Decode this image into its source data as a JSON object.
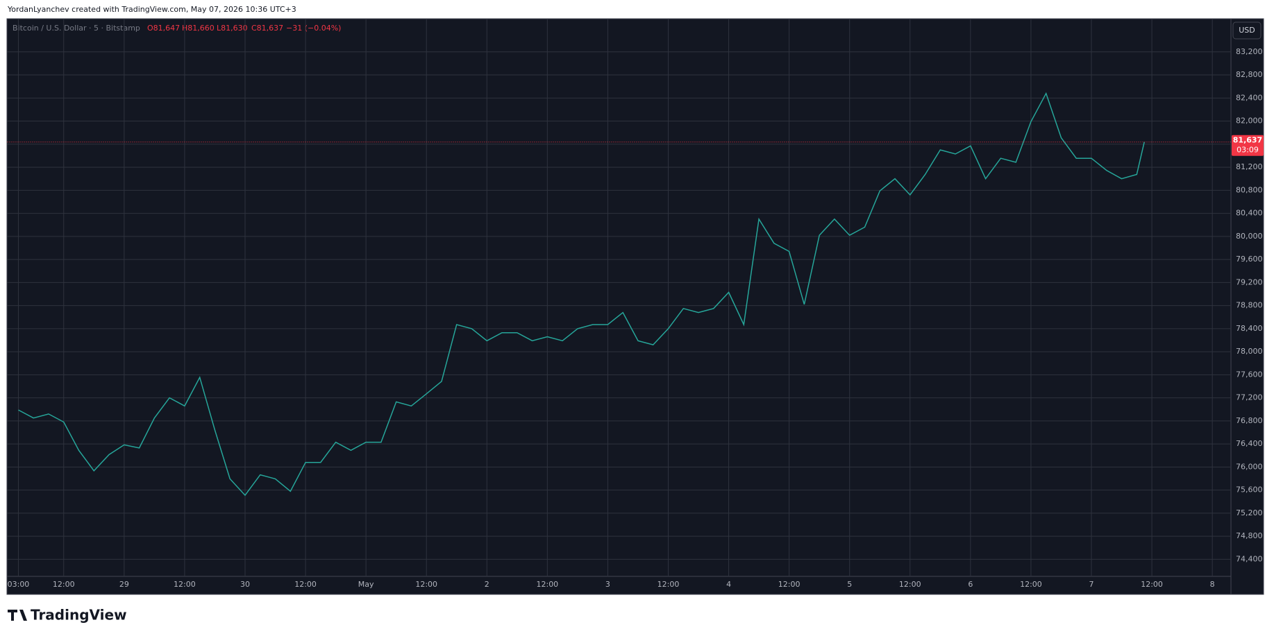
{
  "credit": "YordanLyanchev created with TradingView.com, May 07, 2026 10:36 UTC+3",
  "brand": "TradingView",
  "chart_data": {
    "type": "line",
    "legend": {
      "symbol": "Bitcoin / U.S. Dollar · 5 · Bitstamp",
      "open": "O81,647",
      "high": "H81,660",
      "low": "L81,630",
      "close": "C81,637",
      "change": "−31 (−0.04%)"
    },
    "currency": "USD",
    "countdown": "03:09",
    "last_price": {
      "value": 81637,
      "label": "81,637"
    },
    "color": "#26a69a",
    "x": [
      0,
      3,
      6,
      9,
      12,
      15,
      18,
      21,
      24,
      27,
      30,
      33,
      36,
      39,
      42,
      45,
      48,
      51,
      54,
      57,
      60,
      63,
      66,
      69,
      72,
      75,
      78,
      81,
      84,
      87,
      90,
      93,
      96,
      99,
      102,
      105,
      108,
      111,
      114,
      117,
      120,
      123,
      126,
      129,
      132,
      135,
      138,
      141,
      144,
      147,
      150,
      153,
      156,
      159,
      162,
      165,
      168,
      171,
      174,
      177,
      180,
      183,
      186,
      189,
      192,
      195,
      198,
      201,
      204,
      207,
      210,
      213,
      216,
      219,
      222,
      223.5
    ],
    "values": [
      76990,
      76850,
      76920,
      76780,
      76290,
      75935,
      76215,
      76385,
      76330,
      76850,
      77200,
      77060,
      77555,
      76640,
      75795,
      75510,
      75865,
      75795,
      75580,
      76080,
      76080,
      76430,
      76290,
      76430,
      76430,
      77130,
      77060,
      77270,
      77485,
      78470,
      78400,
      78190,
      78330,
      78330,
      78190,
      78260,
      78190,
      78400,
      78470,
      78470,
      78680,
      78190,
      78120,
      78400,
      78750,
      78680,
      78750,
      79030,
      78470,
      80300,
      79880,
      79740,
      78820,
      80020,
      80300,
      80020,
      80160,
      80790,
      81000,
      80720,
      81075,
      81500,
      81430,
      81570,
      81000,
      81355,
      81285,
      81990,
      82480,
      81710,
      81355,
      81355,
      81145,
      81000,
      81075,
      81637
    ],
    "xlim": [
      -2.2,
      240.7
    ],
    "xticks": [
      {
        "value": 0,
        "label": "03:00"
      },
      {
        "value": 9,
        "label": "12:00"
      },
      {
        "value": 21,
        "label": "29"
      },
      {
        "value": 33,
        "label": "12:00"
      },
      {
        "value": 45,
        "label": "30"
      },
      {
        "value": 57,
        "label": "12:00"
      },
      {
        "value": 69,
        "label": "May"
      },
      {
        "value": 81,
        "label": "12:00"
      },
      {
        "value": 93,
        "label": "2"
      },
      {
        "value": 105,
        "label": "12:00"
      },
      {
        "value": 117,
        "label": "3"
      },
      {
        "value": 129,
        "label": "12:00"
      },
      {
        "value": 141,
        "label": "4"
      },
      {
        "value": 153,
        "label": "12:00"
      },
      {
        "value": 165,
        "label": "5"
      },
      {
        "value": 177,
        "label": "12:00"
      },
      {
        "value": 189,
        "label": "6"
      },
      {
        "value": 201,
        "label": "12:00"
      },
      {
        "value": 213,
        "label": "7"
      },
      {
        "value": 225,
        "label": "12:00"
      },
      {
        "value": 237,
        "label": "8"
      }
    ],
    "ylim": [
      74104,
      83763
    ],
    "yticks": [
      {
        "value": 74400,
        "label": "74,400"
      },
      {
        "value": 74800,
        "label": "74,800"
      },
      {
        "value": 75200,
        "label": "75,200"
      },
      {
        "value": 75600,
        "label": "75,600"
      },
      {
        "value": 76000,
        "label": "76,000"
      },
      {
        "value": 76400,
        "label": "76,400"
      },
      {
        "value": 76800,
        "label": "76,800"
      },
      {
        "value": 77200,
        "label": "77,200"
      },
      {
        "value": 77600,
        "label": "77,600"
      },
      {
        "value": 78000,
        "label": "78,000"
      },
      {
        "value": 78400,
        "label": "78,400"
      },
      {
        "value": 78800,
        "label": "78,800"
      },
      {
        "value": 79200,
        "label": "79,200"
      },
      {
        "value": 79600,
        "label": "79,600"
      },
      {
        "value": 80000,
        "label": "80,000"
      },
      {
        "value": 80400,
        "label": "80,400"
      },
      {
        "value": 80800,
        "label": "80,800"
      },
      {
        "value": 81200,
        "label": "81,200"
      },
      {
        "value": 81600,
        "label": "81,600"
      },
      {
        "value": 82000,
        "label": "82,000"
      },
      {
        "value": 82400,
        "label": "82,400"
      },
      {
        "value": 82800,
        "label": "82,800"
      },
      {
        "value": 83200,
        "label": "83,200"
      }
    ],
    "grid": true
  }
}
